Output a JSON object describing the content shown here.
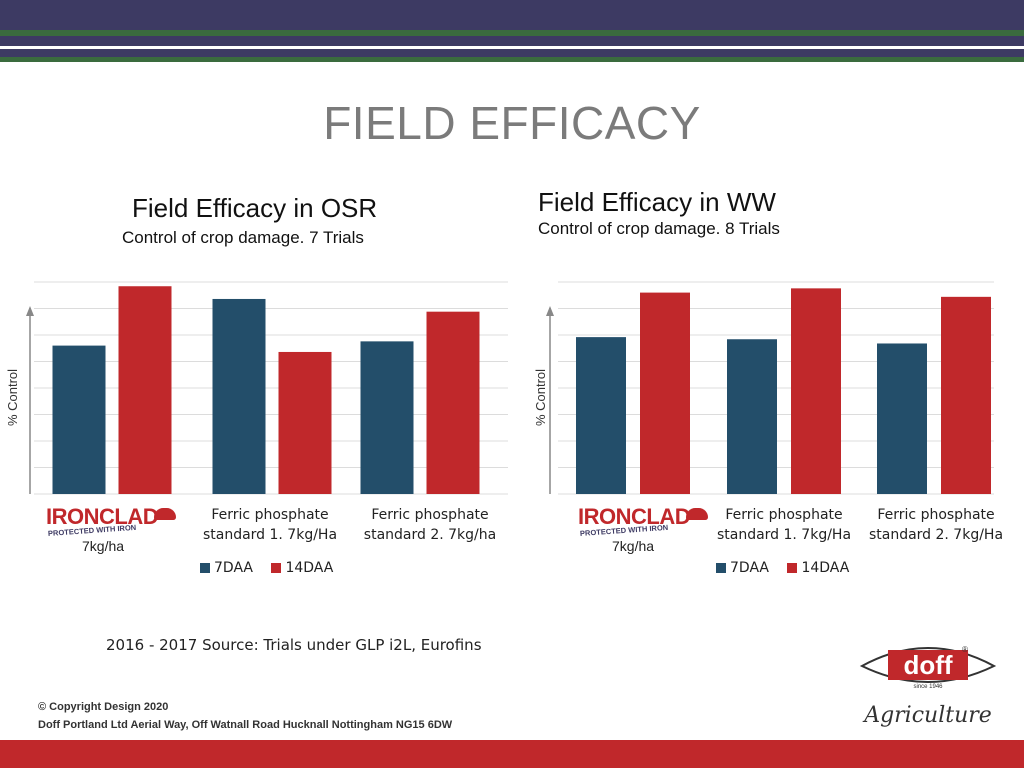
{
  "page": {
    "title": "FIELD EFFICACY",
    "source": "2016 - 2017 Source: Trials under GLP i2L, Eurofins",
    "copyright": "© Copyright Design 2020",
    "address": "Doff Portland Ltd Aerial Way, Off Watnall Road Hucknall Nottingham NG15 6DW",
    "brand": {
      "doff_text": "doff",
      "doff_since": "since 1946",
      "doff_registered": "®",
      "agriculture": "Agriculture"
    },
    "product_logo": {
      "name": "IRONCLAD",
      "tagline": "PROTECTED WITH IRON",
      "rate": "7kg/ha"
    },
    "colors": {
      "header": "#3d3a63",
      "green": "#3a6b3e",
      "accent": "#c0282b",
      "series_7daa": "#234e6a",
      "series_14daa": "#c0282b"
    }
  },
  "chart_data": [
    {
      "type": "bar",
      "title": "Field Efficacy in OSR",
      "subtitle": "Control of crop damage. 7 Trials",
      "ylabel": "% Control",
      "ylim": [
        0,
        100
      ],
      "grid": true,
      "categories": [
        "IRONCLAD 7kg/ha",
        "Ferric phosphate standard 1.  7kg/Ha",
        "Ferric phosphate standard 2. 7kg/ha"
      ],
      "category_lines": [
        [
          "Ferric phosphate",
          "standard 1.  7kg/Ha"
        ],
        [
          "Ferric phosphate",
          "standard 2. 7kg/ha"
        ]
      ],
      "series": [
        {
          "name": "7DAA",
          "values": [
            70,
            92,
            72
          ]
        },
        {
          "name": "14DAA",
          "values": [
            98,
            67,
            86
          ]
        }
      ],
      "legend_position": "bottom-center"
    },
    {
      "type": "bar",
      "title": "Field Efficacy in WW",
      "subtitle": "Control of crop damage. 8 Trials",
      "ylabel": "% Control",
      "ylim": [
        0,
        100
      ],
      "grid": true,
      "categories": [
        "IRONCLAD 7kg/ha",
        "Ferric phosphate standard 1. 7kg/Ha",
        "Ferric phosphate standard 2. 7kg/Ha"
      ],
      "category_lines": [
        [
          "Ferric phosphate",
          "standard 1. 7kg/Ha"
        ],
        [
          "Ferric phosphate",
          "standard 2. 7kg/Ha"
        ]
      ],
      "series": [
        {
          "name": "7DAA",
          "values": [
            74,
            73,
            71
          ]
        },
        {
          "name": "14DAA",
          "values": [
            95,
            97,
            93
          ]
        }
      ],
      "legend_position": "bottom-center"
    }
  ]
}
